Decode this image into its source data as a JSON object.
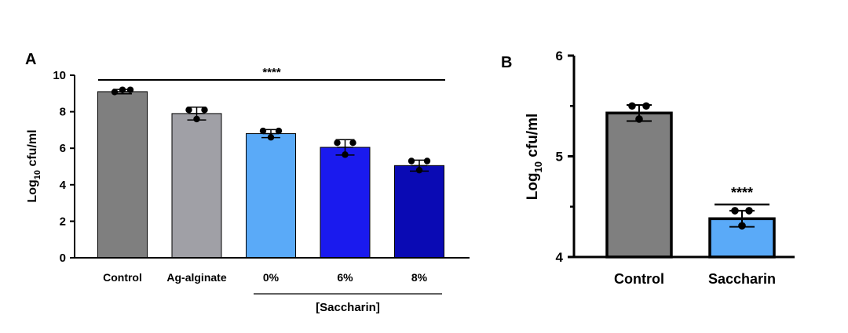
{
  "chart_data": [
    {
      "panel": "A",
      "type": "bar",
      "categories": [
        "Control",
        "Ag-alginate",
        "0%",
        "6%",
        "8%"
      ],
      "values": [
        9.1,
        7.9,
        6.8,
        6.05,
        5.05
      ],
      "errors": [
        0.12,
        0.35,
        0.22,
        0.42,
        0.3
      ],
      "points": [
        [
          9.08,
          9.2,
          9.2
        ],
        [
          8.1,
          7.6,
          8.1
        ],
        [
          6.95,
          6.6,
          6.95
        ],
        [
          6.3,
          5.65,
          6.3
        ],
        [
          5.3,
          4.8,
          5.3
        ]
      ],
      "colors": [
        "#7f7f7f",
        "#a0a0a6",
        "#5aaaf8",
        "#1a1aee",
        "#0a0ab4"
      ],
      "ylabel": "Log",
      "ylabel_sub": "10",
      "ylabel_suffix": " cfu/ml",
      "ylim": [
        0,
        10
      ],
      "yticks": [
        "0",
        "2",
        "4",
        "6",
        "8",
        "10"
      ],
      "significance": "****",
      "group_label": "[Saccharin]"
    },
    {
      "panel": "B",
      "type": "bar",
      "categories": [
        "Control",
        "Saccharin"
      ],
      "values": [
        5.43,
        4.38
      ],
      "errors": [
        0.08,
        0.08
      ],
      "points": [
        [
          5.5,
          5.37,
          5.5
        ],
        [
          4.46,
          4.31,
          4.46
        ]
      ],
      "colors": [
        "#7f7f7f",
        "#5aaaf8"
      ],
      "ylabel": "Log",
      "ylabel_sub": "10",
      "ylabel_suffix": " cfu/ml",
      "ylim": [
        4,
        6
      ],
      "yticks": [
        "4",
        "5",
        "6"
      ],
      "significance": "****"
    }
  ]
}
